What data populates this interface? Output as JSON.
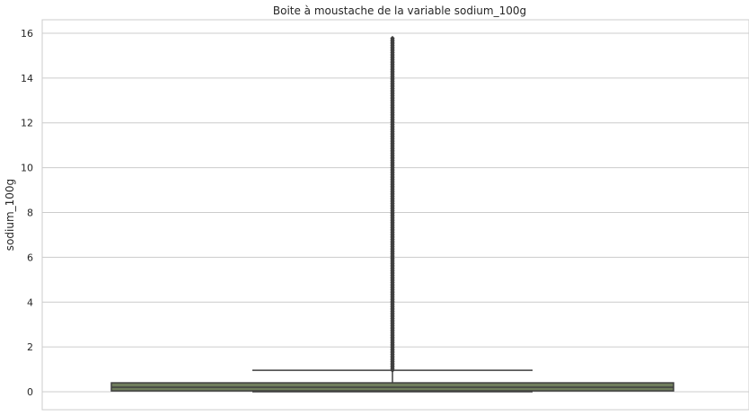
{
  "chart_data": {
    "type": "boxplot",
    "title": "Boite à moustache de la variable sodium_100g",
    "xlabel": "",
    "ylabel": "sodium_100g",
    "ylim": [
      -0.8,
      16.6
    ],
    "yticks": [
      0,
      2,
      4,
      6,
      8,
      10,
      12,
      14,
      16
    ],
    "grid": "horizontal",
    "box": {
      "q1": 0.04,
      "median": 0.2,
      "q3": 0.4,
      "whisker_low": 0.0,
      "whisker_high": 0.96,
      "outlier_min": 0.96,
      "outlier_max": 15.8
    },
    "colors": {
      "box_fill": "#6f7d5c",
      "lines": "#3f3f3f",
      "grid": "#cccccc",
      "frame": "#cccccc"
    }
  }
}
